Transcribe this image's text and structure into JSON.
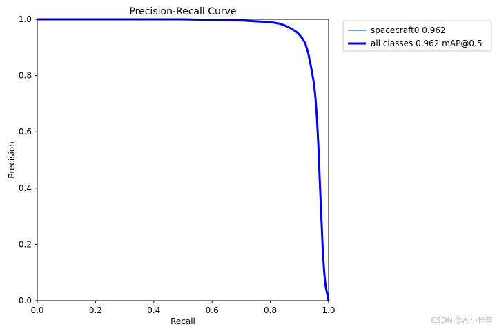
{
  "chart_data": {
    "type": "line",
    "title": "Precision-Recall Curve",
    "xlabel": "Recall",
    "ylabel": "Precision",
    "xlim": [
      0,
      1
    ],
    "ylim": [
      0,
      1
    ],
    "xticks": [
      "0.0",
      "0.2",
      "0.4",
      "0.6",
      "0.8",
      "1.0"
    ],
    "yticks": [
      "0.0",
      "0.2",
      "0.4",
      "0.6",
      "0.8",
      "1.0"
    ],
    "grid": false,
    "legend_position": "outside-top-right",
    "series": [
      {
        "name": "spacecraft0 0.962",
        "color": "#1f77b4",
        "x": [
          0.0,
          0.2,
          0.4,
          0.5,
          0.6,
          0.7,
          0.75,
          0.8,
          0.83,
          0.85,
          0.87,
          0.89,
          0.9,
          0.91,
          0.92,
          0.93,
          0.94,
          0.95,
          0.955,
          0.96,
          0.965,
          0.97,
          0.975,
          0.98,
          0.985,
          0.99,
          1.0
        ],
        "y": [
          1.0,
          1.0,
          1.0,
          1.0,
          0.998,
          0.996,
          0.993,
          0.99,
          0.985,
          0.978,
          0.968,
          0.955,
          0.945,
          0.932,
          0.915,
          0.88,
          0.83,
          0.77,
          0.72,
          0.65,
          0.55,
          0.42,
          0.3,
          0.18,
          0.1,
          0.05,
          0.0
        ]
      },
      {
        "name": "all classes 0.962 mAP@0.5",
        "color": "#0000ff",
        "x": [
          0.0,
          0.2,
          0.4,
          0.5,
          0.6,
          0.7,
          0.75,
          0.8,
          0.83,
          0.85,
          0.87,
          0.89,
          0.9,
          0.91,
          0.92,
          0.93,
          0.94,
          0.95,
          0.955,
          0.96,
          0.965,
          0.97,
          0.975,
          0.98,
          0.985,
          0.99,
          1.0
        ],
        "y": [
          1.0,
          1.0,
          1.0,
          1.0,
          0.998,
          0.996,
          0.993,
          0.99,
          0.985,
          0.978,
          0.968,
          0.955,
          0.945,
          0.932,
          0.915,
          0.88,
          0.83,
          0.77,
          0.72,
          0.65,
          0.55,
          0.42,
          0.3,
          0.18,
          0.1,
          0.05,
          0.0
        ]
      }
    ]
  },
  "watermark": "CSDN @AI小怪兽"
}
